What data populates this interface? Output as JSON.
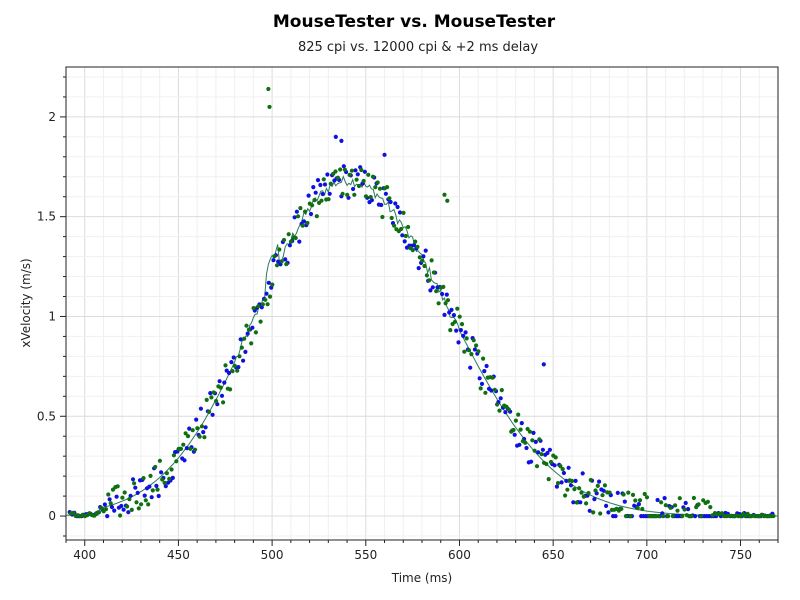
{
  "chart_data": {
    "type": "scatter",
    "title": "MouseTester vs. MouseTester",
    "subtitle": "825 cpi vs. 12000 cpi & +2 ms delay",
    "xlabel": "Time (ms)",
    "ylabel": "xVelocity (m/s)",
    "xlim": [
      390,
      770
    ],
    "ylim": [
      -0.12,
      2.25
    ],
    "x_ticks": [
      400,
      450,
      500,
      550,
      600,
      650,
      700,
      750
    ],
    "y_ticks": [
      0,
      0.5,
      1,
      1.5,
      2
    ],
    "x_tick_labels": [
      "400",
      "450",
      "500",
      "550",
      "600",
      "650",
      "700",
      "750"
    ],
    "y_tick_labels": [
      "0",
      "0.5",
      "1",
      "1.5",
      "2"
    ],
    "grid": true,
    "legend": "none",
    "colors": {
      "series_a": "#1010e0",
      "series_b": "#107010",
      "trend": "#2a7a5a",
      "grid": "#e6e6e6"
    }
  }
}
